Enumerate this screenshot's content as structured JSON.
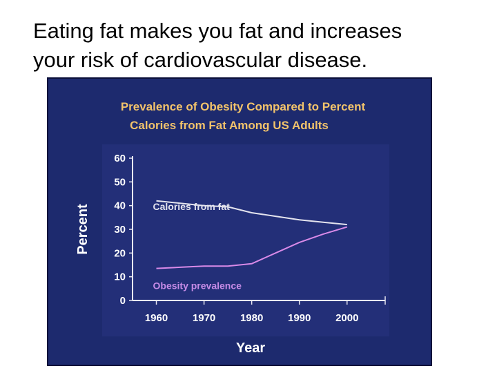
{
  "slide": {
    "heading_lines": [
      "Eating fat makes you fat and increases",
      "your risk of cardiovascular disease."
    ]
  },
  "colors": {
    "chart_background": "#1d2a6e",
    "plot_background": "#232f78",
    "axis": "#e9e9f2",
    "title": "#f2c36b",
    "fat_line": "#e4e4ee",
    "obesity_line": "#d98ae8",
    "fat_label": "#e4e4ee",
    "obesity_label": "#c58be6"
  },
  "chart_data": {
    "type": "line",
    "title_lines": [
      "Prevalence of Obesity Compared to Percent",
      "Calories from Fat Among US Adults"
    ],
    "xlabel": "Year",
    "ylabel": "Percent",
    "xlim": [
      1955,
      2008
    ],
    "ylim": [
      0,
      60
    ],
    "xticks": [
      1960,
      1970,
      1980,
      1990,
      2000
    ],
    "yticks": [
      0,
      10,
      20,
      30,
      40,
      50,
      60
    ],
    "grid": false,
    "legend": "inline labels",
    "series": [
      {
        "name": "Calories from fat",
        "x": [
          1960,
          1965,
          1970,
          1975,
          1980,
          1985,
          1990,
          1995,
          2000
        ],
        "y": [
          42,
          41,
          40,
          39.5,
          37,
          35.5,
          34,
          33,
          32
        ]
      },
      {
        "name": "Obesity prevalence",
        "x": [
          1960,
          1965,
          1970,
          1975,
          1980,
          1985,
          1990,
          1995,
          2000
        ],
        "y": [
          13.5,
          14,
          14.5,
          14.5,
          15.5,
          20,
          24.5,
          28,
          31
        ]
      }
    ]
  }
}
